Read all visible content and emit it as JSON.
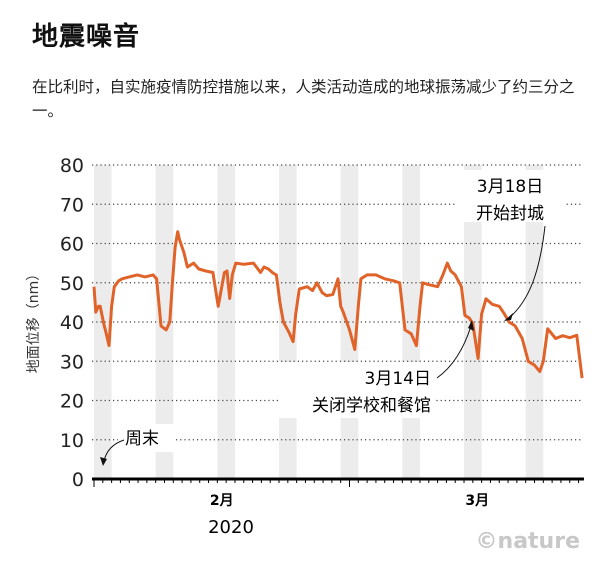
{
  "title": "地震噪音",
  "subtitle": "在比利时，自实施疫情防控措施以来，人类活动造成的地球振荡减少了约三分之一。",
  "chart_data": {
    "type": "line",
    "title": "地震噪音",
    "ylabel": "地面位移（nm）",
    "xlabel": "2020",
    "x_unit": "days since 1 Feb 2020",
    "ylim": [
      0,
      80
    ],
    "xlim": [
      0,
      55.5
    ],
    "yticks": [
      "0",
      "10",
      "20",
      "30",
      "40",
      "50",
      "60",
      "70",
      "80"
    ],
    "xtick_labels": [
      {
        "label": "2月",
        "day": 14.5
      },
      {
        "label": "3月",
        "day": 43.5
      }
    ],
    "year_label": "2020",
    "grid": true,
    "line_color": "#e0632a",
    "weekend_color": "#ececec",
    "weekend_starts": [
      0,
      7,
      14,
      21,
      28,
      35,
      42,
      49
    ],
    "series": [
      {
        "name": "地面位移",
        "x": [
          0,
          0.2,
          0.5,
          0.7,
          1.1,
          1.4,
          1.7,
          2.0,
          2.3,
          2.8,
          3.2,
          4.0,
          4.9,
          5.8,
          6.7,
          7.1,
          7.4,
          7.6,
          8.2,
          8.6,
          8.9,
          9.2,
          9.5,
          9.7,
          10.2,
          10.6,
          11.3,
          11.9,
          12.7,
          13.5,
          14.1,
          14.8,
          15.1,
          15.4,
          15.7,
          16.1,
          17.0,
          18.1,
          18.9,
          19.3,
          19.8,
          20.3,
          20.7,
          21.1,
          21.5,
          22.1,
          22.6,
          22.9,
          23.3,
          24.2,
          24.8,
          25.3,
          25.9,
          26.4,
          27.1,
          27.7,
          28.0,
          28.3,
          29.0,
          29.6,
          30.0,
          30.3,
          31.0,
          32.0,
          33.0,
          34.0,
          34.7,
          35.3,
          36.0,
          36.6,
          37.0,
          37.3,
          38.0,
          39.0,
          39.6,
          40.1,
          40.5,
          41.0,
          41.7,
          42.1,
          42.6,
          43.0,
          43.6,
          44.0,
          44.5,
          45.2,
          46.0,
          46.6,
          47.1,
          47.8,
          48.6,
          49.3,
          50.0,
          50.6,
          51.0,
          51.5,
          52.4,
          53.2,
          54.0,
          54.8,
          55.4
        ],
        "y": [
          49,
          42.5,
          44,
          44,
          39.6,
          37,
          34,
          44,
          49,
          50.5,
          51,
          51.5,
          52,
          51.5,
          52,
          51,
          44,
          39,
          38,
          40,
          50,
          59,
          63,
          61,
          57.7,
          54,
          55,
          53.5,
          53,
          52.6,
          44,
          52.6,
          53,
          46,
          52,
          55,
          54.7,
          55,
          52.6,
          54,
          53.5,
          52.5,
          52,
          45,
          40,
          37.5,
          35,
          42,
          48.4,
          49,
          48,
          50,
          47.5,
          46.7,
          47,
          51,
          44,
          42.5,
          38,
          33,
          44,
          51,
          52,
          52,
          51,
          50.5,
          50,
          38,
          37,
          34,
          44,
          50,
          49.5,
          49,
          52,
          55,
          53,
          52,
          49,
          41.7,
          41,
          39.6,
          30.7,
          42,
          45.9,
          44.5,
          44,
          42,
          40,
          39,
          35.8,
          30,
          29,
          27.4,
          30,
          38.3,
          35.8,
          36.5,
          36,
          36.6,
          25.7
        ]
      }
    ],
    "annotations": [
      {
        "text_line1": "3月18日",
        "text_line2": "开始封城",
        "day": 47
      },
      {
        "text_line1": "3月14日",
        "text_line2": "关闭学校和餐馆",
        "day": 42.6
      },
      {
        "text": "周末"
      }
    ]
  },
  "credit": "©nature"
}
